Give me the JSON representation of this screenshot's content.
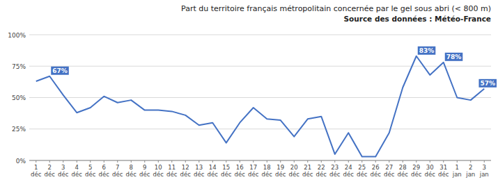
{
  "chart_data": {
    "type": "line",
    "title": "Part du territoire français métropolitain concernée par le gel sous abri (< 800 m)",
    "subtitle": "Source des données : Météo-France",
    "categories": [
      "1\ndéc",
      "2\ndéc",
      "3\ndéc",
      "4\ndéc",
      "5\ndéc",
      "6\ndéc",
      "7\ndéc",
      "8\ndéc",
      "9\ndéc",
      "10\ndéc",
      "11\ndéc",
      "12\ndéc",
      "13\ndéc",
      "14\ndéc",
      "15\ndéc",
      "16\ndéc",
      "17\ndéc",
      "18\ndéc",
      "19\ndéc",
      "20\ndéc",
      "21\ndéc",
      "22\ndéc",
      "23\ndéc",
      "24\ndéc",
      "25\ndéc",
      "26\ndéc",
      "27\ndéc",
      "28\ndéc",
      "29\ndéc",
      "30\ndéc",
      "31\ndéc",
      "1\njan",
      "2\njan",
      "3\njan"
    ],
    "values": [
      63,
      67,
      52,
      38,
      42,
      51,
      46,
      48,
      40,
      40,
      39,
      36,
      28,
      30,
      14,
      30,
      42,
      33,
      32,
      19,
      33,
      35,
      5,
      22,
      3,
      3,
      22,
      58,
      83,
      68,
      78,
      50,
      48,
      57
    ],
    "color": "#4472C4",
    "annotations": [
      {
        "index": 1,
        "label": "67%"
      },
      {
        "index": 28,
        "label": "83%"
      },
      {
        "index": 30,
        "label": "78%"
      },
      {
        "index": 33,
        "label": "57%"
      }
    ],
    "ylim": [
      0,
      100
    ],
    "yticks": [
      {
        "value": 0,
        "label": "0%"
      },
      {
        "value": 25,
        "label": "25%"
      },
      {
        "value": 50,
        "label": "50%"
      },
      {
        "value": 75,
        "label": "75%"
      },
      {
        "value": 100,
        "label": "100%"
      }
    ],
    "grid": true
  }
}
